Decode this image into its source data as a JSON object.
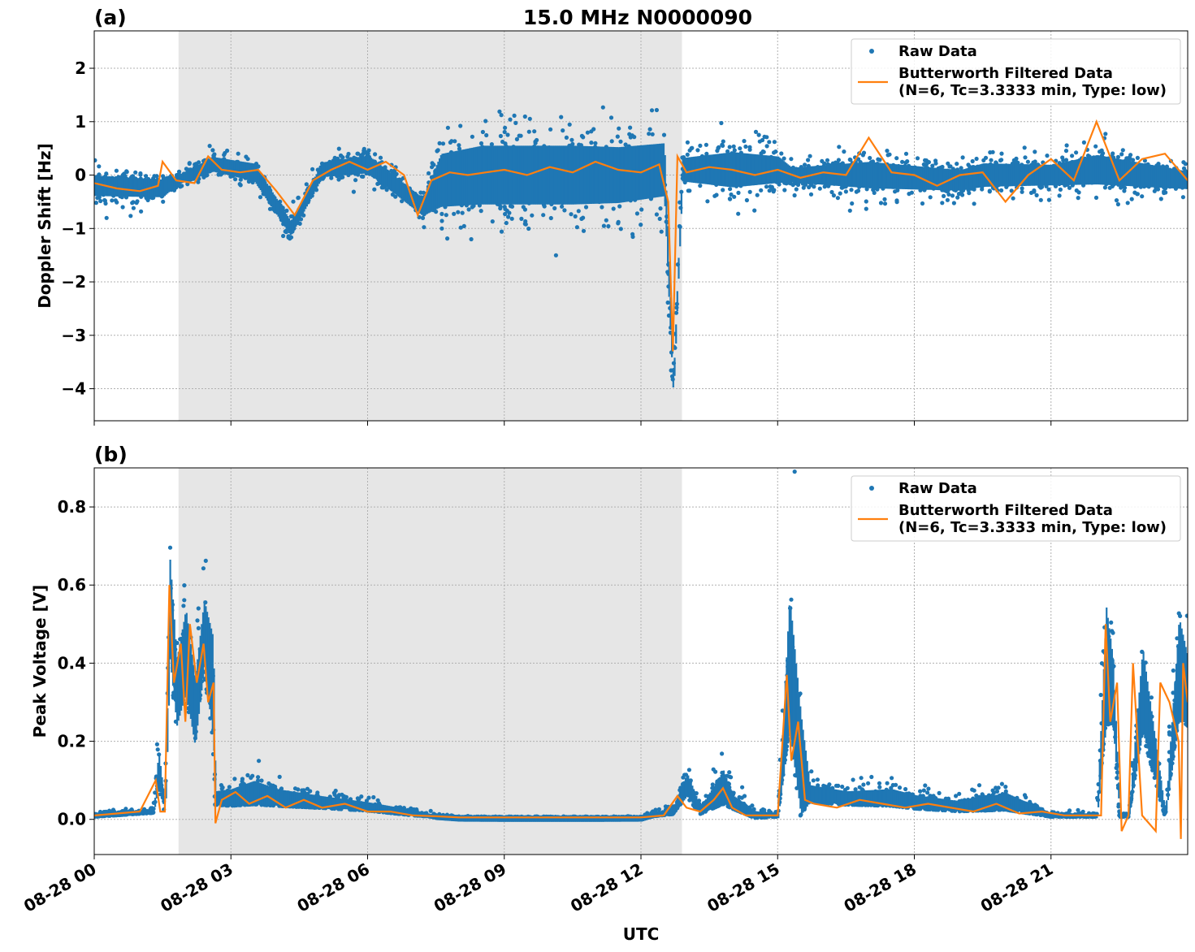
{
  "figure": {
    "title": "15.0 MHz N0000090",
    "xlabel": "UTC"
  },
  "colors": {
    "raw": "#1f77b4",
    "filtered": "#ff7f0e",
    "shade": "#e6e6e6",
    "grid": "#b0b0b0"
  },
  "chart_data": [
    {
      "type": "scatter",
      "panel_label": "(a)",
      "ylabel": "Doppler Shift [Hz]",
      "xlim_hours": [
        0,
        24
      ],
      "ylim": [
        -4.6,
        2.7
      ],
      "yticks": [
        2,
        1,
        0,
        -1,
        -2,
        -3,
        -4
      ],
      "ytick_labels": [
        "2",
        "1",
        "0",
        "−1",
        "−2",
        "−3",
        "−4"
      ],
      "shaded_region_hours": [
        1.85,
        12.9
      ],
      "grid": true,
      "legend_position": "upper right",
      "legend": [
        "Raw Data",
        "Butterworth Filtered Data",
        "(N=6, Tc=3.3333 min, Type: low)"
      ],
      "series": [
        {
          "name": "Raw Data",
          "x_hours": [
            0,
            1.5,
            1.8,
            2.6,
            3.5,
            4.3,
            5,
            6,
            7.2,
            7.6,
            8.5,
            9.5,
            10.5,
            11.5,
            12.5,
            12.7,
            12.9,
            14,
            15,
            15.3,
            17,
            19,
            19.5,
            21,
            22,
            23,
            24
          ],
          "center": [
            -0.2,
            -0.25,
            -0.1,
            0.2,
            0.05,
            -1.0,
            0.1,
            0.2,
            -0.6,
            -0.1,
            0.0,
            0.0,
            0.0,
            0.0,
            0.1,
            -4.0,
            0.1,
            0.1,
            0.1,
            0.0,
            0.0,
            -0.1,
            0.0,
            0.0,
            0.1,
            0.0,
            -0.1
          ],
          "spread": [
            0.35,
            0.3,
            0.15,
            0.25,
            0.3,
            0.25,
            0.25,
            0.3,
            0.3,
            0.9,
            1.0,
            1.0,
            1.0,
            0.95,
            0.9,
            0.3,
            0.4,
            0.6,
            0.45,
            0.25,
            0.45,
            0.35,
            0.4,
            0.35,
            0.5,
            0.4,
            0.3
          ]
        },
        {
          "name": "Butterworth Filtered Data",
          "x_hours": [
            0,
            0.5,
            1.0,
            1.4,
            1.5,
            1.8,
            2.2,
            2.5,
            2.8,
            3.2,
            3.6,
            4.0,
            4.4,
            4.8,
            5.2,
            5.6,
            6.0,
            6.4,
            6.8,
            7.1,
            7.4,
            7.8,
            8.2,
            8.6,
            9.0,
            9.5,
            10.0,
            10.5,
            11.0,
            11.5,
            12.0,
            12.4,
            12.6,
            12.7,
            12.8,
            13.0,
            13.5,
            14.0,
            14.5,
            15.0,
            15.5,
            16.0,
            16.5,
            17.0,
            17.5,
            18.0,
            18.5,
            19.0,
            19.5,
            20.0,
            20.5,
            21.0,
            21.5,
            22.0,
            22.5,
            23.0,
            23.5,
            24.0
          ],
          "y": [
            -0.15,
            -0.25,
            -0.3,
            -0.2,
            0.25,
            -0.1,
            -0.15,
            0.35,
            0.1,
            0.05,
            0.1,
            -0.3,
            -0.75,
            -0.1,
            0.1,
            0.25,
            0.1,
            0.25,
            0.0,
            -0.75,
            -0.1,
            0.05,
            0.0,
            0.05,
            0.1,
            0.0,
            0.15,
            0.05,
            0.25,
            0.1,
            0.05,
            0.2,
            -0.5,
            -3.3,
            0.35,
            0.05,
            0.15,
            0.1,
            0.0,
            0.1,
            -0.05,
            0.05,
            0.0,
            0.7,
            0.05,
            0.0,
            -0.2,
            0.0,
            0.05,
            -0.5,
            0.0,
            0.3,
            -0.1,
            1.0,
            -0.1,
            0.3,
            0.4,
            -0.1
          ]
        }
      ]
    },
    {
      "type": "scatter",
      "panel_label": "(b)",
      "ylabel": "Peak Voltage [V]",
      "xlim_hours": [
        0,
        24
      ],
      "ylim": [
        -0.09,
        0.9
      ],
      "yticks": [
        0.0,
        0.2,
        0.4,
        0.6,
        0.8
      ],
      "ytick_labels": [
        "0.0",
        "0.2",
        "0.4",
        "0.6",
        "0.8"
      ],
      "xticks_hours": [
        0,
        3,
        6,
        9,
        12,
        15,
        18,
        21
      ],
      "xtick_labels": [
        "08-28 00",
        "08-28 03",
        "08-28 06",
        "08-28 09",
        "08-28 12",
        "08-28 15",
        "08-28 18",
        "08-28 21"
      ],
      "shaded_region_hours": [
        1.85,
        12.9
      ],
      "grid": true,
      "legend_position": "upper right",
      "legend": [
        "Raw Data",
        "Butterworth Filtered Data",
        "(N=6, Tc=3.3333 min, Type: low)"
      ],
      "series": [
        {
          "name": "Raw Data",
          "x_hours": [
            0,
            1.3,
            1.4,
            1.55,
            1.65,
            1.8,
            2.0,
            2.2,
            2.4,
            2.6,
            2.65,
            3.0,
            3.5,
            4.0,
            5.0,
            6.0,
            7.0,
            7.5,
            8.0,
            9.0,
            10.0,
            11.0,
            12.0,
            12.7,
            13.0,
            13.3,
            13.8,
            14.0,
            14.5,
            15.0,
            15.25,
            15.5,
            15.7,
            16.5,
            17.5,
            18.0,
            19.0,
            20.0,
            21.0,
            22.0,
            22.2,
            22.35,
            22.5,
            22.7,
            23.0,
            23.5,
            23.8,
            24.0
          ],
          "center": [
            0.01,
            0.02,
            0.12,
            0.02,
            0.5,
            0.3,
            0.4,
            0.25,
            0.45,
            0.3,
            0.05,
            0.05,
            0.06,
            0.05,
            0.04,
            0.03,
            0.015,
            0.008,
            0.005,
            0.005,
            0.005,
            0.005,
            0.005,
            0.02,
            0.08,
            0.02,
            0.07,
            0.04,
            0.01,
            0.01,
            0.35,
            0.1,
            0.06,
            0.05,
            0.05,
            0.04,
            0.03,
            0.04,
            0.01,
            0.01,
            0.35,
            0.3,
            0.01,
            0.01,
            0.3,
            0.01,
            0.35,
            0.3
          ],
          "spread": [
            0.01,
            0.01,
            0.1,
            0.02,
            0.3,
            0.2,
            0.25,
            0.2,
            0.2,
            0.3,
            0.04,
            0.05,
            0.07,
            0.05,
            0.035,
            0.025,
            0.015,
            0.005,
            0.003,
            0.002,
            0.002,
            0.002,
            0.003,
            0.02,
            0.07,
            0.02,
            0.1,
            0.04,
            0.02,
            0.01,
            0.4,
            0.3,
            0.05,
            0.04,
            0.05,
            0.04,
            0.03,
            0.05,
            0.01,
            0.01,
            0.35,
            0.2,
            0.01,
            0.01,
            0.25,
            0.01,
            0.3,
            0.2
          ]
        },
        {
          "name": "Butterworth Filtered Data",
          "x_hours": [
            0,
            0.5,
            1.0,
            1.35,
            1.45,
            1.55,
            1.65,
            1.75,
            1.9,
            2.0,
            2.1,
            2.25,
            2.4,
            2.5,
            2.62,
            2.66,
            2.8,
            3.1,
            3.4,
            3.8,
            4.2,
            4.6,
            5.0,
            5.5,
            6.0,
            6.5,
            7.0,
            7.5,
            8.0,
            9.0,
            10.0,
            11.0,
            12.0,
            12.5,
            12.8,
            13.0,
            13.3,
            13.6,
            13.8,
            14.0,
            14.3,
            14.7,
            15.0,
            15.2,
            15.3,
            15.45,
            15.6,
            15.8,
            16.3,
            16.8,
            17.3,
            17.8,
            18.3,
            18.8,
            19.3,
            19.8,
            20.3,
            20.8,
            21.3,
            21.8,
            22.1,
            22.2,
            22.3,
            22.45,
            22.55,
            22.7,
            22.8,
            23.0,
            23.3,
            23.4,
            23.6,
            23.8,
            23.85,
            23.9,
            24.0
          ],
          "y": [
            0.01,
            0.015,
            0.02,
            0.1,
            0.02,
            0.02,
            0.6,
            0.35,
            0.45,
            0.25,
            0.5,
            0.35,
            0.45,
            0.3,
            0.35,
            -0.01,
            0.05,
            0.07,
            0.04,
            0.06,
            0.03,
            0.05,
            0.03,
            0.04,
            0.02,
            0.02,
            0.01,
            0.008,
            0.005,
            0.005,
            0.005,
            0.005,
            0.005,
            0.01,
            0.06,
            0.03,
            0.02,
            0.05,
            0.08,
            0.03,
            0.01,
            0.01,
            0.01,
            0.37,
            0.15,
            0.25,
            0.05,
            0.04,
            0.03,
            0.05,
            0.04,
            0.03,
            0.04,
            0.03,
            0.02,
            0.04,
            0.015,
            0.02,
            0.01,
            0.01,
            0.01,
            0.5,
            0.25,
            0.35,
            -0.03,
            0.01,
            0.4,
            0.01,
            -0.03,
            0.35,
            0.3,
            0.2,
            -0.05,
            0.4,
            0.3
          ]
        }
      ]
    }
  ]
}
